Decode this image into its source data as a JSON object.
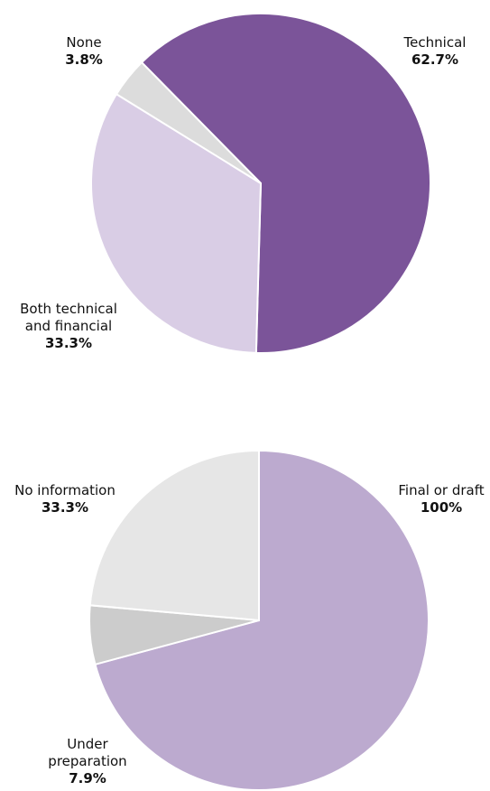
{
  "chart_data": [
    {
      "type": "pie",
      "categories": [
        "Technical",
        "Both technical and financial",
        "None"
      ],
      "values": [
        62.7,
        33.3,
        3.8
      ],
      "value_labels": [
        "62.7%",
        "33.3%",
        "3.8%"
      ],
      "colors": [
        "#7b5499",
        "#d9cde5",
        "#dcdcdc"
      ]
    },
    {
      "type": "pie",
      "categories": [
        "Final or draft",
        "Under preparation",
        "No information"
      ],
      "values": [
        100,
        7.9,
        33.3
      ],
      "value_labels": [
        "100%",
        "7.9%",
        "33.3%"
      ],
      "colors": [
        "#bcaacf",
        "#cccccc",
        "#e6e6e6"
      ]
    }
  ]
}
